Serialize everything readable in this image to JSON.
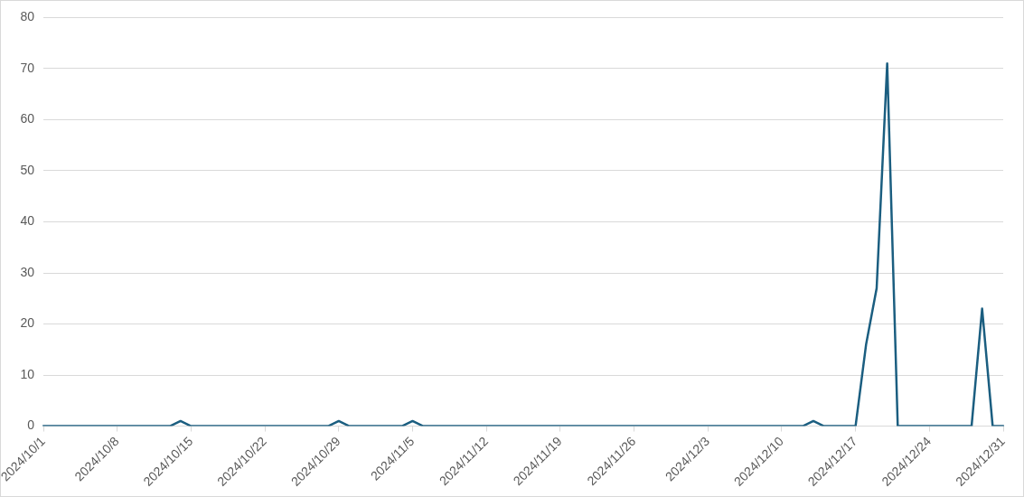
{
  "chart_data": {
    "type": "line",
    "categories": [
      "2024/10/1",
      null,
      null,
      null,
      null,
      null,
      null,
      "2024/10/8",
      null,
      null,
      null,
      null,
      null,
      null,
      "2024/10/15",
      null,
      null,
      null,
      null,
      null,
      null,
      "2024/10/22",
      null,
      null,
      null,
      null,
      null,
      null,
      "2024/10/29",
      null,
      null,
      null,
      null,
      null,
      null,
      "2024/11/5",
      null,
      null,
      null,
      null,
      null,
      null,
      "2024/11/12",
      null,
      null,
      null,
      null,
      null,
      null,
      "2024/11/19",
      null,
      null,
      null,
      null,
      null,
      null,
      "2024/11/26",
      null,
      null,
      null,
      null,
      null,
      null,
      "2024/12/3",
      null,
      null,
      null,
      null,
      null,
      null,
      "2024/12/10",
      null,
      null,
      null,
      null,
      null,
      null,
      "2024/12/17",
      null,
      null,
      null,
      null,
      null,
      null,
      "2024/12/24",
      null,
      null,
      null,
      null,
      null,
      null,
      "2024/12/31"
    ],
    "series": [
      {
        "color": "#1b5e80",
        "values": [
          0,
          0,
          0,
          0,
          0,
          0,
          0,
          0,
          0,
          0,
          0,
          0,
          0,
          1,
          0,
          0,
          0,
          0,
          0,
          0,
          0,
          0,
          0,
          0,
          0,
          0,
          0,
          0,
          1,
          0,
          0,
          0,
          0,
          0,
          0,
          1,
          0,
          0,
          0,
          0,
          0,
          0,
          0,
          0,
          0,
          0,
          0,
          0,
          0,
          0,
          0,
          0,
          0,
          0,
          0,
          0,
          0,
          0,
          0,
          0,
          0,
          0,
          0,
          0,
          0,
          0,
          0,
          0,
          0,
          0,
          0,
          0,
          0,
          1,
          0,
          0,
          0,
          0,
          16,
          27,
          71,
          0,
          0,
          0,
          0,
          0,
          0,
          0,
          0,
          23,
          0,
          0
        ]
      }
    ],
    "ylim": [
      0,
      80
    ],
    "yticks": [
      0,
      10,
      20,
      30,
      40,
      50,
      60,
      70,
      80
    ],
    "grid": "y",
    "legend": false,
    "marker": "none",
    "line_style": "solid"
  }
}
